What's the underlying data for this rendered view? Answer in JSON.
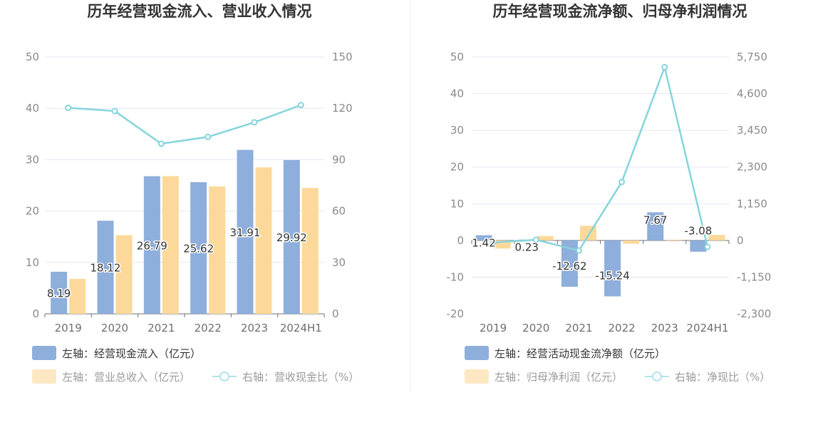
{
  "chart_data": [
    {
      "type": "bar",
      "title": "历年经营现金流入、营业收入情况",
      "categories": [
        "2019",
        "2020",
        "2021",
        "2022",
        "2023",
        "2024H1"
      ],
      "left_axis": {
        "ylim": [
          0,
          50
        ],
        "ticks": [
          "0",
          "10",
          "20",
          "30",
          "40",
          "50"
        ]
      },
      "right_axis": {
        "ylim": [
          0,
          150
        ],
        "ticks": [
          "0",
          "30",
          "60",
          "90",
          "120",
          "150"
        ]
      },
      "series": [
        {
          "name": "左轴：经营现金流入（亿元）",
          "axis": "left",
          "type": "bar",
          "color": "#8eaedb",
          "values": [
            8.19,
            18.12,
            26.79,
            25.62,
            31.91,
            29.92
          ],
          "labels": [
            "8.19",
            "18.12",
            "26.79",
            "25.62",
            "31.91",
            "29.92"
          ]
        },
        {
          "name": "左轴：营业总收入（亿元）",
          "axis": "left",
          "type": "bar",
          "color": "#fcd99a",
          "values": [
            6.8,
            15.3,
            26.8,
            24.8,
            28.5,
            24.5
          ]
        },
        {
          "name": "右轴：营收现金比（%）",
          "axis": "right",
          "type": "line",
          "color": "#86d4dc",
          "values": [
            120.3,
            118.4,
            99.3,
            103.3,
            111.8,
            121.9
          ]
        }
      ],
      "legend": "bottom"
    },
    {
      "type": "bar",
      "title": "历年经营现金流净额、归母净利润情况",
      "categories": [
        "2019",
        "2020",
        "2021",
        "2022",
        "2023",
        "2024H1"
      ],
      "left_axis": {
        "ylim": [
          -20,
          50
        ],
        "ticks": [
          "-20",
          "-10",
          "0",
          "10",
          "20",
          "30",
          "40",
          "50"
        ]
      },
      "right_axis": {
        "ylim": [
          -2300,
          5750
        ],
        "ticks": [
          "-2,300",
          "-1,150",
          "0",
          "1,150",
          "2,300",
          "3,450",
          "4,600",
          "5,750"
        ]
      },
      "series": [
        {
          "name": "左轴：经营活动现金流净额（亿元）",
          "axis": "left",
          "type": "bar",
          "color": "#8eaedb",
          "values": [
            1.42,
            0.23,
            -12.62,
            -15.24,
            7.67,
            -3.08
          ],
          "labels": [
            "1.42",
            "0.23",
            "-12.62",
            "-15.24",
            "7.67",
            "-3.08"
          ]
        },
        {
          "name": "左轴：归母净利润（亿元）",
          "axis": "left",
          "type": "bar",
          "color": "#fcd99a",
          "values": [
            -2.2,
            1.2,
            4.0,
            -0.9,
            0.2,
            1.5
          ]
        },
        {
          "name": "右轴：净现比（%）",
          "axis": "right",
          "type": "line",
          "color": "#86d4dc",
          "values": [
            -65,
            19,
            -316,
            1830,
            5430,
            -200
          ]
        }
      ],
      "legend": "bottom"
    }
  ]
}
